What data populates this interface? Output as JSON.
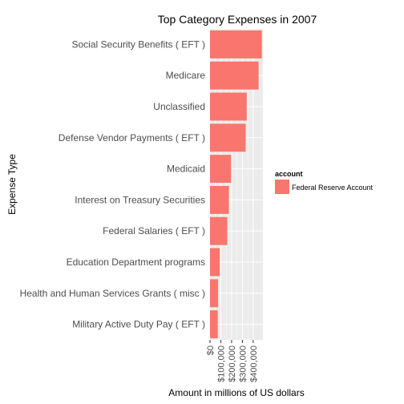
{
  "chart_data": {
    "type": "bar",
    "orientation": "horizontal",
    "title": "Top Category Expenses in 2007",
    "xlabel": "Amount in millions of US dollars",
    "ylabel": "Expense Type",
    "categories": [
      "Social Security Benefits ( EFT )",
      "Medicare",
      "Unclassified",
      "Defense Vendor Payments ( EFT )",
      "Medicaid",
      "Interest on Treasury Securities",
      "Federal Salaries ( EFT )",
      "Education Department programs",
      "Health and Human Services Grants ( misc )",
      "Military Active Duty Pay ( EFT )"
    ],
    "series": [
      {
        "name": "Federal Reserve Account",
        "values": [
          480000,
          450000,
          340000,
          330000,
          195000,
          175000,
          160000,
          90000,
          75000,
          72000
        ]
      }
    ],
    "xlim": [
      0,
      490000
    ],
    "xticks": [
      0,
      100000,
      200000,
      300000,
      400000
    ],
    "xtick_labels": [
      "$0",
      "$100,000",
      "$200,000",
      "$300,000",
      "$400,000"
    ],
    "legend": {
      "title": "account",
      "entries": [
        "Federal Reserve Account"
      ],
      "position": "right"
    },
    "grid": true,
    "colors": {
      "bar": "#F8766D",
      "panel": "#EBEBEB",
      "grid": "#FFFFFF"
    }
  }
}
